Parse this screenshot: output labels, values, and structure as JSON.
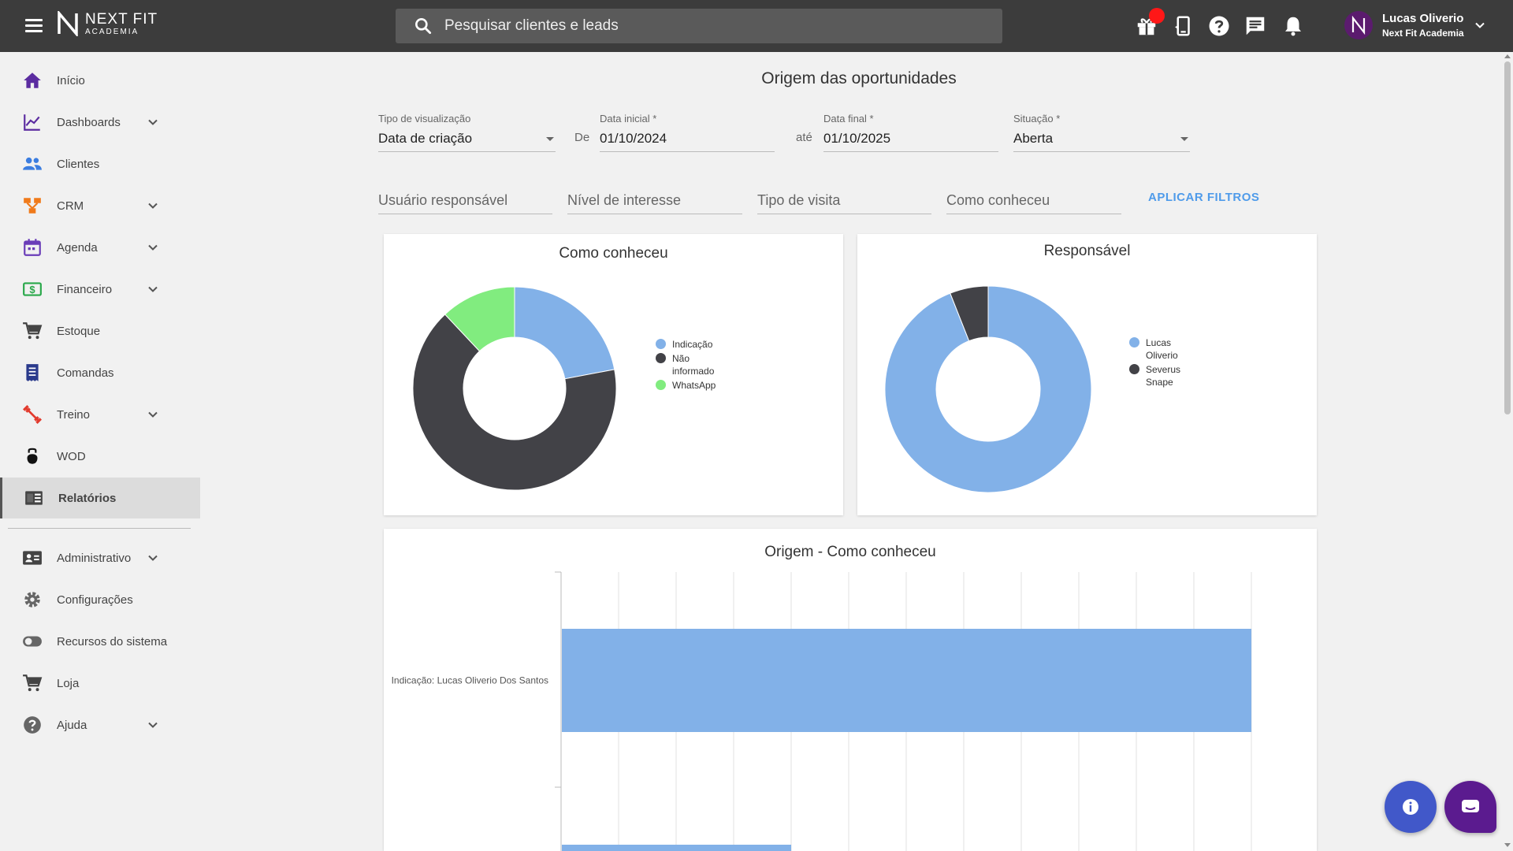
{
  "topbar": {
    "logo_line1": "NEXT FIT",
    "logo_line2": "ACADEMIA",
    "search_placeholder": "Pesquisar clientes e leads",
    "user_name": "Lucas Oliverio",
    "user_subtitle": "Next Fit Academia",
    "icons": [
      "gift-icon",
      "phone-icon",
      "help-icon",
      "chat-icon",
      "bell-icon"
    ]
  },
  "sidebar": {
    "items": [
      {
        "label": "Início",
        "icon": "home-icon",
        "has_chevron": false
      },
      {
        "label": "Dashboards",
        "icon": "chart-line-icon",
        "has_chevron": true
      },
      {
        "label": "Clientes",
        "icon": "people-icon",
        "has_chevron": false
      },
      {
        "label": "CRM",
        "icon": "crm-icon",
        "has_chevron": true
      },
      {
        "label": "Agenda",
        "icon": "calendar-icon",
        "has_chevron": true
      },
      {
        "label": "Financeiro",
        "icon": "money-icon",
        "has_chevron": true
      },
      {
        "label": "Estoque",
        "icon": "cart-icon",
        "has_chevron": false
      },
      {
        "label": "Comandas",
        "icon": "receipt-icon",
        "has_chevron": false
      },
      {
        "label": "Treino",
        "icon": "dumbbell-icon",
        "has_chevron": true
      },
      {
        "label": "WOD",
        "icon": "kettlebell-icon",
        "has_chevron": false
      },
      {
        "label": "Relatórios",
        "icon": "reports-icon",
        "has_chevron": false,
        "active": true
      },
      {
        "label": "Administrativo",
        "icon": "id-card-icon",
        "has_chevron": true
      },
      {
        "label": "Configurações",
        "icon": "gear-icon",
        "has_chevron": false
      },
      {
        "label": "Recursos do sistema",
        "icon": "toggle-icon",
        "has_chevron": false
      },
      {
        "label": "Loja",
        "icon": "cart-icon",
        "has_chevron": false
      },
      {
        "label": "Ajuda",
        "icon": "help-icon",
        "has_chevron": true
      }
    ]
  },
  "main": {
    "title": "Origem das oportunidades",
    "filters": {
      "tipo_label": "Tipo de visualização",
      "tipo_value": "Data de criação",
      "de_label": "De",
      "data_inicial_label": "Data inicial *",
      "data_inicial_value": "01/10/2024",
      "ate_label": "até",
      "data_final_label": "Data final *",
      "data_final_value": "01/10/2025",
      "situacao_label": "Situação *",
      "situacao_value": "Aberta",
      "usuario_placeholder": "Usuário responsável",
      "nivel_placeholder": "Nível de interesse",
      "visita_placeholder": "Tipo de visita",
      "como_placeholder": "Como conheceu",
      "apply_label": "APLICAR FILTROS"
    }
  },
  "chart_data": [
    {
      "type": "pie",
      "title": "Como conheceu",
      "donut": true,
      "categories": [
        "Indicação",
        "Não informado",
        "WhatsApp"
      ],
      "legend_lines": [
        [
          "Indicação"
        ],
        [
          "Não",
          "informado"
        ],
        [
          "WhatsApp"
        ]
      ],
      "values": [
        22,
        66,
        12
      ],
      "colors": [
        "#82b1e8",
        "#424247",
        "#81ec7f"
      ],
      "legend": "right"
    },
    {
      "type": "pie",
      "title": "Responsável",
      "donut": true,
      "categories": [
        "Lucas Oliverio",
        "Severus Snape"
      ],
      "legend_lines": [
        [
          "Lucas",
          "Oliverio"
        ],
        [
          "Severus",
          "Snape"
        ]
      ],
      "values": [
        94,
        6
      ],
      "colors": [
        "#82b1e8",
        "#424247"
      ],
      "legend": "right"
    },
    {
      "type": "bar",
      "orientation": "horizontal",
      "title": "Origem - Como conheceu",
      "categories": [
        "Indicação: Lucas Oliverio Dos Santos",
        ""
      ],
      "values": [
        12,
        4
      ],
      "xlim": [
        0,
        13
      ],
      "colors": [
        "#82b1e8"
      ],
      "grid": true
    }
  ]
}
